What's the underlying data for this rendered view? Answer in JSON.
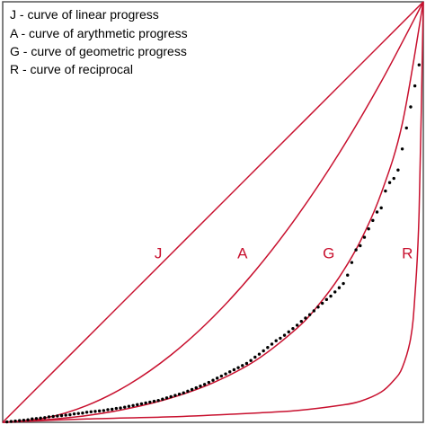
{
  "chart_data": {
    "type": "line",
    "title": "",
    "xlabel": "",
    "ylabel": "",
    "xlim": [
      0,
      1
    ],
    "ylim": [
      0,
      1
    ],
    "grid": false,
    "legend_position": "top-left",
    "legend": [
      "J - curve of linear progress",
      "A - curve of arythmetic progress",
      "G - curve of geometric progress",
      "R - curve of reciprocal"
    ],
    "curve_color": "#c8102e",
    "point_color": "#000000",
    "curves": [
      {
        "label": "J",
        "label_x": 0.37,
        "label_y": 0.39,
        "x": [
          0,
          1
        ],
        "y": [
          0,
          1
        ]
      },
      {
        "label": "A",
        "label_x": 0.57,
        "label_y": 0.39,
        "x": [
          0,
          0.1,
          0.2,
          0.3,
          0.4,
          0.5,
          0.6,
          0.7,
          0.8,
          0.9,
          1.0
        ],
        "y": [
          0,
          0.01,
          0.04,
          0.09,
          0.16,
          0.25,
          0.36,
          0.49,
          0.64,
          0.81,
          1.0
        ]
      },
      {
        "label": "G",
        "label_x": 0.775,
        "label_y": 0.39,
        "x": [
          0,
          0.1,
          0.2,
          0.3,
          0.4,
          0.5,
          0.6,
          0.7,
          0.75,
          0.8,
          0.85,
          0.9,
          0.95,
          1.0
        ],
        "y": [
          0,
          0.006,
          0.016,
          0.033,
          0.058,
          0.094,
          0.146,
          0.224,
          0.278,
          0.345,
          0.43,
          0.545,
          0.71,
          1.0
        ]
      },
      {
        "label": "R",
        "label_x": 0.962,
        "label_y": 0.39,
        "x": [
          0,
          0.2,
          0.4,
          0.6,
          0.7,
          0.8,
          0.85,
          0.9,
          0.93,
          0.95,
          0.97,
          0.98,
          0.99,
          1.0
        ],
        "y": [
          0,
          0.008,
          0.013,
          0.022,
          0.028,
          0.04,
          0.05,
          0.072,
          0.1,
          0.13,
          0.2,
          0.3,
          0.5,
          1.0
        ]
      }
    ],
    "points": {
      "x": [
        0.01,
        0.02,
        0.03,
        0.04,
        0.05,
        0.06,
        0.07,
        0.08,
        0.09,
        0.1,
        0.11,
        0.12,
        0.13,
        0.14,
        0.15,
        0.16,
        0.17,
        0.18,
        0.19,
        0.2,
        0.21,
        0.22,
        0.23,
        0.24,
        0.25,
        0.26,
        0.27,
        0.28,
        0.29,
        0.3,
        0.31,
        0.32,
        0.33,
        0.34,
        0.35,
        0.36,
        0.37,
        0.38,
        0.39,
        0.4,
        0.41,
        0.42,
        0.43,
        0.44,
        0.45,
        0.46,
        0.47,
        0.48,
        0.49,
        0.5,
        0.51,
        0.52,
        0.53,
        0.54,
        0.55,
        0.56,
        0.57,
        0.58,
        0.59,
        0.6,
        0.61,
        0.62,
        0.63,
        0.64,
        0.65,
        0.66,
        0.67,
        0.68,
        0.69,
        0.7,
        0.71,
        0.72,
        0.73,
        0.74,
        0.75,
        0.76,
        0.77,
        0.78,
        0.79,
        0.8,
        0.81,
        0.82,
        0.83,
        0.84,
        0.85,
        0.86,
        0.87,
        0.88,
        0.89,
        0.9,
        0.91,
        0.92,
        0.93,
        0.94,
        0.95,
        0.96,
        0.97,
        0.98,
        0.99
      ],
      "y": [
        0.001,
        0.002,
        0.003,
        0.004,
        0.005,
        0.006,
        0.008,
        0.009,
        0.01,
        0.011,
        0.013,
        0.014,
        0.015,
        0.016,
        0.017,
        0.018,
        0.02,
        0.021,
        0.022,
        0.024,
        0.025,
        0.026,
        0.027,
        0.028,
        0.03,
        0.031,
        0.033,
        0.034,
        0.036,
        0.038,
        0.04,
        0.042,
        0.044,
        0.046,
        0.048,
        0.05,
        0.052,
        0.055,
        0.058,
        0.061,
        0.064,
        0.067,
        0.07,
        0.074,
        0.078,
        0.082,
        0.086,
        0.09,
        0.095,
        0.1,
        0.105,
        0.11,
        0.115,
        0.12,
        0.125,
        0.13,
        0.135,
        0.14,
        0.147,
        0.155,
        0.162,
        0.17,
        0.178,
        0.186,
        0.194,
        0.2,
        0.207,
        0.215,
        0.223,
        0.231,
        0.24,
        0.248,
        0.256,
        0.265,
        0.274,
        0.283,
        0.292,
        0.3,
        0.31,
        0.32,
        0.33,
        0.35,
        0.38,
        0.41,
        0.42,
        0.44,
        0.46,
        0.48,
        0.5,
        0.51,
        0.55,
        0.57,
        0.58,
        0.6,
        0.65,
        0.7,
        0.75,
        0.8,
        0.85
      ]
    }
  }
}
